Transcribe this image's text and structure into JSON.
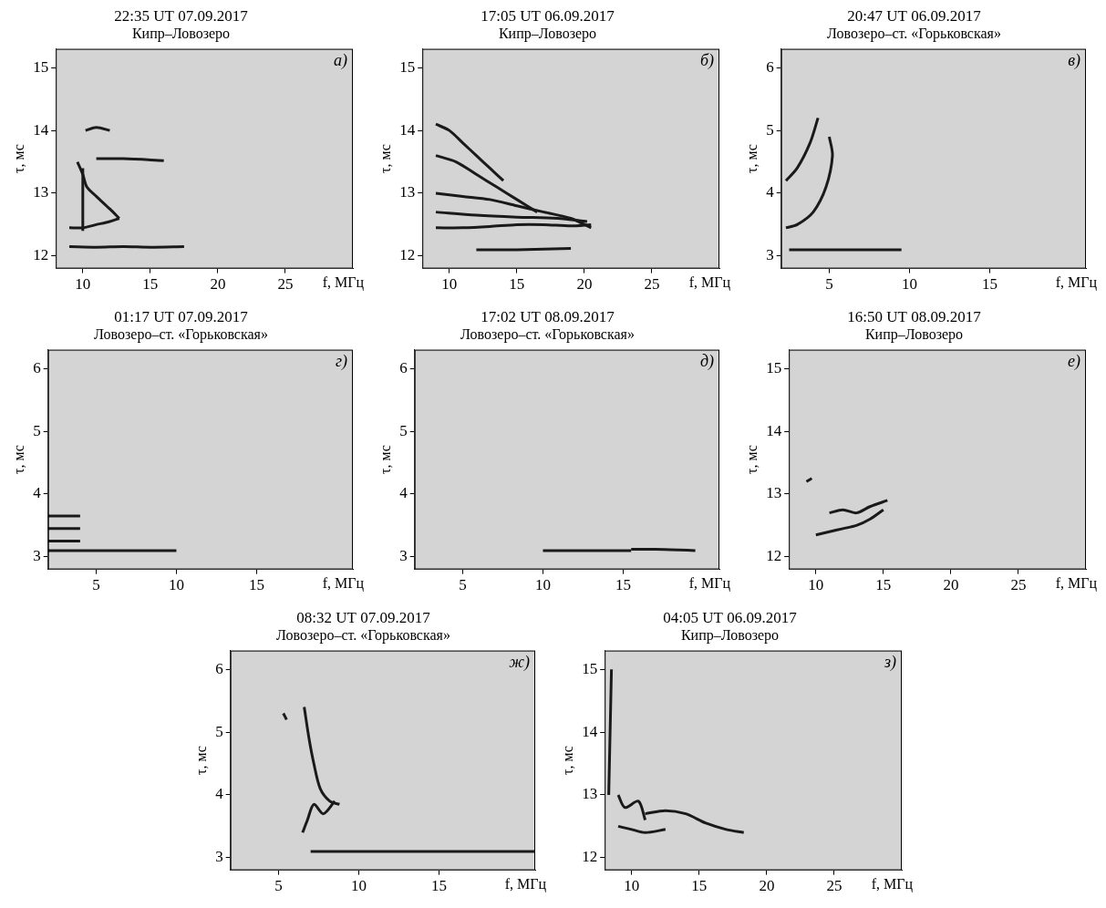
{
  "chart_data": [
    {
      "type": "line",
      "title": "22:35 UT 07.09.2017",
      "subtitle": "Кипр–Ловозеро",
      "annotation": "а)",
      "x_label": "f, МГц",
      "y_label": "τ, мс",
      "xlim": [
        8,
        30
      ],
      "xticks": [
        10,
        15,
        20,
        25
      ],
      "ylim": [
        11.8,
        15.3
      ],
      "yticks": [
        12,
        13,
        14,
        15
      ],
      "grid": false,
      "color": "#1a1a1a",
      "series": [
        {
          "x": [
            9,
            11,
            13,
            15,
            17.5
          ],
          "values": [
            12.15,
            12.14,
            12.15,
            12.14,
            12.15
          ]
        },
        {
          "x": [
            11,
            13,
            16
          ],
          "values": [
            13.55,
            13.55,
            13.52
          ]
        },
        {
          "x": [
            9,
            10,
            11,
            12,
            12.7
          ],
          "values": [
            12.45,
            12.45,
            12.5,
            12.55,
            12.6
          ]
        },
        {
          "x": [
            12.7,
            12,
            11,
            10.3,
            10,
            9.6
          ],
          "values": [
            12.6,
            12.75,
            12.95,
            13.1,
            13.3,
            13.5
          ]
        },
        {
          "x": [
            10.2,
            11,
            12
          ],
          "values": [
            14.0,
            14.05,
            14.0
          ]
        },
        {
          "x": [
            10,
            10,
            10
          ],
          "values": [
            12.4,
            12.9,
            13.4
          ]
        }
      ]
    },
    {
      "type": "line",
      "title": "17:05 UT 06.09.2017",
      "subtitle": "Кипр–Ловозеро",
      "annotation": "б)",
      "x_label": "f, МГц",
      "y_label": "τ, мс",
      "xlim": [
        8,
        30
      ],
      "xticks": [
        10,
        15,
        20,
        25
      ],
      "ylim": [
        11.8,
        15.3
      ],
      "yticks": [
        12,
        13,
        14,
        15
      ],
      "grid": false,
      "color": "#1a1a1a",
      "series": [
        {
          "x": [
            9,
            11,
            13,
            15,
            17,
            19,
            20.5
          ],
          "values": [
            12.45,
            12.45,
            12.47,
            12.5,
            12.5,
            12.48,
            12.5
          ]
        },
        {
          "x": [
            9,
            12,
            15,
            18,
            20.2
          ],
          "values": [
            12.7,
            12.65,
            12.62,
            12.6,
            12.55
          ]
        },
        {
          "x": [
            9,
            11,
            13,
            15,
            17,
            19,
            20.5
          ],
          "values": [
            13.0,
            12.95,
            12.9,
            12.8,
            12.7,
            12.6,
            12.45
          ]
        },
        {
          "x": [
            9,
            10.5,
            12,
            13.5,
            15,
            16.5
          ],
          "values": [
            13.6,
            13.5,
            13.3,
            13.1,
            12.9,
            12.7
          ]
        },
        {
          "x": [
            9,
            10,
            11,
            12,
            13,
            14
          ],
          "values": [
            14.1,
            14.0,
            13.8,
            13.6,
            13.4,
            13.2
          ]
        },
        {
          "x": [
            12,
            15,
            19
          ],
          "values": [
            12.1,
            12.1,
            12.12
          ]
        }
      ]
    },
    {
      "type": "line",
      "title": "20:47 UT 06.09.2017",
      "subtitle": "Ловозеро–ст. «Горьковская»",
      "annotation": "в)",
      "x_label": "f, МГц",
      "y_label": "τ, мс",
      "xlim": [
        2,
        21
      ],
      "xticks": [
        5,
        10,
        15
      ],
      "ylim": [
        2.8,
        6.3
      ],
      "yticks": [
        3,
        4,
        5,
        6
      ],
      "grid": false,
      "color": "#1a1a1a",
      "series": [
        {
          "x": [
            2.5,
            4,
            6,
            8,
            9.5
          ],
          "values": [
            3.1,
            3.1,
            3.1,
            3.1,
            3.1
          ]
        },
        {
          "x": [
            2.3,
            3,
            4,
            4.8,
            5.2,
            5.0
          ],
          "values": [
            3.45,
            3.5,
            3.7,
            4.1,
            4.6,
            4.9
          ]
        },
        {
          "x": [
            2.3,
            3,
            3.8,
            4.3
          ],
          "values": [
            4.2,
            4.4,
            4.8,
            5.2
          ]
        }
      ]
    },
    {
      "type": "line",
      "title": "01:17 UT 07.09.2017",
      "subtitle": "Ловозеро–ст. «Горьковская»",
      "annotation": "г)",
      "x_label": "f, МГц",
      "y_label": "τ, мс",
      "xlim": [
        2,
        21
      ],
      "xticks": [
        5,
        10,
        15
      ],
      "ylim": [
        2.8,
        6.3
      ],
      "yticks": [
        3,
        4,
        5,
        6
      ],
      "grid": false,
      "color": "#1a1a1a",
      "series": [
        {
          "x": [
            2,
            4,
            6,
            8,
            10
          ],
          "values": [
            3.1,
            3.1,
            3.1,
            3.1,
            3.1
          ]
        },
        {
          "x": [
            2,
            3,
            4
          ],
          "values": [
            3.25,
            3.25,
            3.25
          ]
        },
        {
          "x": [
            2,
            3,
            4
          ],
          "values": [
            3.45,
            3.45,
            3.45
          ]
        },
        {
          "x": [
            2,
            3,
            4
          ],
          "values": [
            3.65,
            3.65,
            3.65
          ]
        }
      ]
    },
    {
      "type": "line",
      "title": "17:02 UT 08.09.2017",
      "subtitle": "Ловозеро–ст. «Горьковская»",
      "annotation": "д)",
      "x_label": "f, МГц",
      "y_label": "τ, мс",
      "xlim": [
        2,
        21
      ],
      "xticks": [
        5,
        10,
        15
      ],
      "ylim": [
        2.8,
        6.3
      ],
      "yticks": [
        3,
        4,
        5,
        6
      ],
      "grid": false,
      "color": "#1a1a1a",
      "series": [
        {
          "x": [
            10,
            12,
            14,
            15.5
          ],
          "values": [
            3.1,
            3.1,
            3.1,
            3.1
          ]
        },
        {
          "x": [
            15.5,
            17,
            18.5,
            19.5
          ],
          "values": [
            3.12,
            3.12,
            3.11,
            3.1
          ]
        }
      ]
    },
    {
      "type": "line",
      "title": "16:50 UT 08.09.2017",
      "subtitle": "Кипр–Ловозеро",
      "annotation": "е)",
      "x_label": "f, МГц",
      "y_label": "τ, мс",
      "xlim": [
        8,
        30
      ],
      "xticks": [
        10,
        15,
        20,
        25
      ],
      "ylim": [
        11.8,
        15.3
      ],
      "yticks": [
        12,
        13,
        14,
        15
      ],
      "grid": false,
      "color": "#1a1a1a",
      "series": [
        {
          "x": [
            10,
            11,
            12,
            13,
            14,
            15
          ],
          "values": [
            12.35,
            12.4,
            12.45,
            12.5,
            12.6,
            12.75
          ]
        },
        {
          "x": [
            11,
            12,
            13,
            14,
            15.3
          ],
          "values": [
            12.7,
            12.75,
            12.7,
            12.8,
            12.9
          ]
        },
        {
          "x": [
            9.3,
            9.7
          ],
          "values": [
            13.2,
            13.25
          ]
        }
      ]
    },
    {
      "type": "line",
      "title": "08:32 UT 07.09.2017",
      "subtitle": "Ловозеро–ст. «Горьковская»",
      "annotation": "ж)",
      "x_label": "f, МГц",
      "y_label": "τ, мс",
      "xlim": [
        2,
        21
      ],
      "xticks": [
        5,
        10,
        15
      ],
      "ylim": [
        2.8,
        6.3
      ],
      "yticks": [
        3,
        4,
        5,
        6
      ],
      "grid": false,
      "color": "#1a1a1a",
      "series": [
        {
          "x": [
            7,
            10,
            13,
            16,
            19,
            21
          ],
          "values": [
            3.1,
            3.1,
            3.1,
            3.1,
            3.1,
            3.1
          ]
        },
        {
          "x": [
            6.6,
            6.9,
            7.2,
            7.6,
            8.2,
            8.8
          ],
          "values": [
            5.4,
            4.9,
            4.5,
            4.1,
            3.9,
            3.85
          ]
        },
        {
          "x": [
            6.5,
            6.8,
            7.2,
            7.8,
            8.5
          ],
          "values": [
            3.4,
            3.6,
            3.85,
            3.7,
            3.9
          ]
        },
        {
          "x": [
            5.3,
            5.5
          ],
          "values": [
            5.3,
            5.2
          ]
        }
      ]
    },
    {
      "type": "line",
      "title": "04:05 UT 06.09.2017",
      "subtitle": "Кипр–Ловозеро",
      "annotation": "з)",
      "x_label": "f, МГц",
      "y_label": "τ, мс",
      "xlim": [
        8,
        30
      ],
      "xticks": [
        10,
        15,
        20,
        25
      ],
      "ylim": [
        11.8,
        15.3
      ],
      "yticks": [
        12,
        13,
        14,
        15
      ],
      "grid": false,
      "color": "#1a1a1a",
      "series": [
        {
          "x": [
            9,
            10,
            11,
            12.5
          ],
          "values": [
            12.5,
            12.45,
            12.4,
            12.45
          ]
        },
        {
          "x": [
            11,
            12.5,
            14,
            15.5,
            17,
            18.3
          ],
          "values": [
            12.7,
            12.75,
            12.7,
            12.55,
            12.45,
            12.4
          ]
        },
        {
          "x": [
            8.3,
            8.4,
            8.5
          ],
          "values": [
            13,
            14,
            15
          ]
        },
        {
          "x": [
            9,
            9.5,
            10.5,
            11
          ],
          "values": [
            13.0,
            12.8,
            12.9,
            12.6
          ]
        }
      ]
    }
  ]
}
